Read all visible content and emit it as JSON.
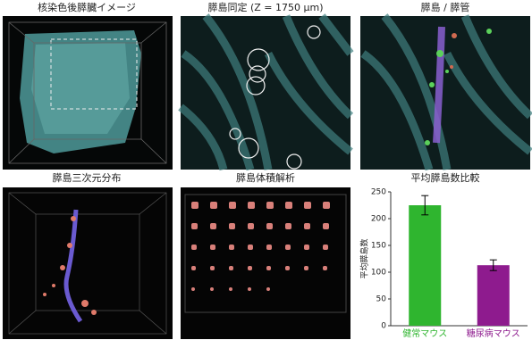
{
  "panels": [
    {
      "title": "核染色後膵臓イメージ"
    },
    {
      "title": "膵島同定 (Z = 1750 μm)"
    },
    {
      "title": "膵島 / 膵管"
    },
    {
      "title": "膵島三次元分布"
    },
    {
      "title": "膵島体積解析"
    }
  ],
  "chart_data": {
    "type": "bar",
    "title": "平均膵島数比較",
    "ylabel": "平均膵島数",
    "categories": [
      "健常マウス",
      "糖尿病マウス"
    ],
    "values": [
      225,
      113
    ],
    "errors": [
      18,
      10
    ],
    "colors": [
      "#2fb52f",
      "#8e1b8e"
    ],
    "ylim": [
      0,
      250
    ],
    "yticks": [
      0,
      50,
      100,
      150,
      200,
      250
    ]
  }
}
